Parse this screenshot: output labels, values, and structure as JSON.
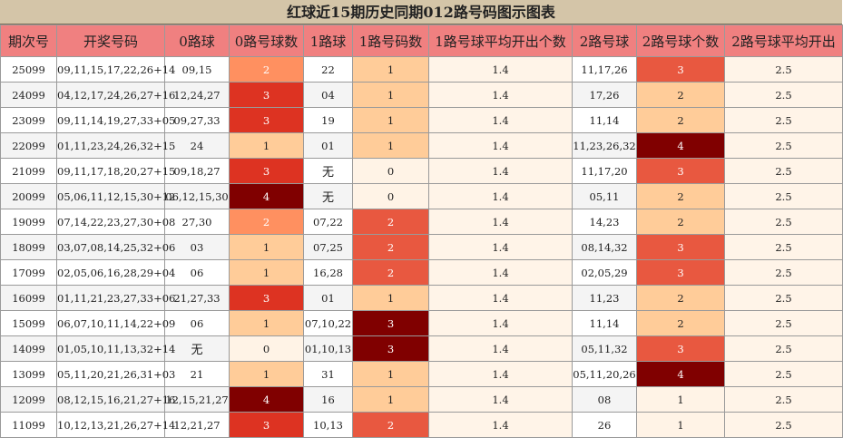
{
  "title": "红球近15期历史同期012路号码图示图表",
  "headers": [
    "期次号",
    "开奖号码",
    "0路球",
    "0路号球数",
    "1路球",
    "1路号码数",
    "1路号球平均开出个数",
    "2路号球",
    "2路号球个数",
    "2路号球平均开出"
  ],
  "rows": [
    {
      "issue": "25099",
      "numbers": "09,11,15,17,22,26+14",
      "r0": "09,15",
      "c0": "2",
      "r1": "22",
      "c1": "1",
      "a1": "1.4",
      "r2": "11,17,26",
      "c2": "3",
      "a2": "2.5"
    },
    {
      "issue": "24099",
      "numbers": "04,12,17,24,26,27+16",
      "r0": "12,24,27",
      "c0": "3",
      "r1": "04",
      "c1": "1",
      "a1": "1.4",
      "r2": "17,26",
      "c2": "2",
      "a2": "2.5"
    },
    {
      "issue": "23099",
      "numbers": "09,11,14,19,27,33+05",
      "r0": "09,27,33",
      "c0": "3",
      "r1": "19",
      "c1": "1",
      "a1": "1.4",
      "r2": "11,14",
      "c2": "2",
      "a2": "2.5"
    },
    {
      "issue": "22099",
      "numbers": "01,11,23,24,26,32+15",
      "r0": "24",
      "c0": "1",
      "r1": "01",
      "c1": "1",
      "a1": "1.4",
      "r2": "11,23,26,32",
      "c2": "4",
      "a2": "2.5"
    },
    {
      "issue": "21099",
      "numbers": "09,11,17,18,20,27+15",
      "r0": "09,18,27",
      "c0": "3",
      "r1": "无",
      "c1": "0",
      "a1": "1.4",
      "r2": "11,17,20",
      "c2": "3",
      "a2": "2.5"
    },
    {
      "issue": "20099",
      "numbers": "05,06,11,12,15,30+12",
      "r0": "06,12,15,30",
      "c0": "4",
      "r1": "无",
      "c1": "0",
      "a1": "1.4",
      "r2": "05,11",
      "c2": "2",
      "a2": "2.5"
    },
    {
      "issue": "19099",
      "numbers": "07,14,22,23,27,30+08",
      "r0": "27,30",
      "c0": "2",
      "r1": "07,22",
      "c1": "2",
      "a1": "1.4",
      "r2": "14,23",
      "c2": "2",
      "a2": "2.5"
    },
    {
      "issue": "18099",
      "numbers": "03,07,08,14,25,32+06",
      "r0": "03",
      "c0": "1",
      "r1": "07,25",
      "c1": "2",
      "a1": "1.4",
      "r2": "08,14,32",
      "c2": "3",
      "a2": "2.5"
    },
    {
      "issue": "17099",
      "numbers": "02,05,06,16,28,29+04",
      "r0": "06",
      "c0": "1",
      "r1": "16,28",
      "c1": "2",
      "a1": "1.4",
      "r2": "02,05,29",
      "c2": "3",
      "a2": "2.5"
    },
    {
      "issue": "16099",
      "numbers": "01,11,21,23,27,33+06",
      "r0": "21,27,33",
      "c0": "3",
      "r1": "01",
      "c1": "1",
      "a1": "1.4",
      "r2": "11,23",
      "c2": "2",
      "a2": "2.5"
    },
    {
      "issue": "15099",
      "numbers": "06,07,10,11,14,22+09",
      "r0": "06",
      "c0": "1",
      "r1": "07,10,22",
      "c1": "3",
      "a1": "1.4",
      "r2": "11,14",
      "c2": "2",
      "a2": "2.5"
    },
    {
      "issue": "14099",
      "numbers": "01,05,10,11,13,32+14",
      "r0": "无",
      "c0": "0",
      "r1": "01,10,13",
      "c1": "3",
      "a1": "1.4",
      "r2": "05,11,32",
      "c2": "3",
      "a2": "2.5"
    },
    {
      "issue": "13099",
      "numbers": "05,11,20,21,26,31+03",
      "r0": "21",
      "c0": "1",
      "r1": "31",
      "c1": "1",
      "a1": "1.4",
      "r2": "05,11,20,26",
      "c2": "4",
      "a2": "2.5"
    },
    {
      "issue": "12099",
      "numbers": "08,12,15,16,21,27+16",
      "r0": "12,15,21,27",
      "c0": "4",
      "r1": "16",
      "c1": "1",
      "a1": "1.4",
      "r2": "08",
      "c2": "1",
      "a2": "2.5"
    },
    {
      "issue": "11099",
      "numbers": "10,12,13,21,26,27+14",
      "r0": "12,21,27",
      "c0": "3",
      "r1": "10,13",
      "c1": "2",
      "a1": "1.4",
      "r2": "26",
      "c2": "1",
      "a2": "2.5"
    }
  ]
}
